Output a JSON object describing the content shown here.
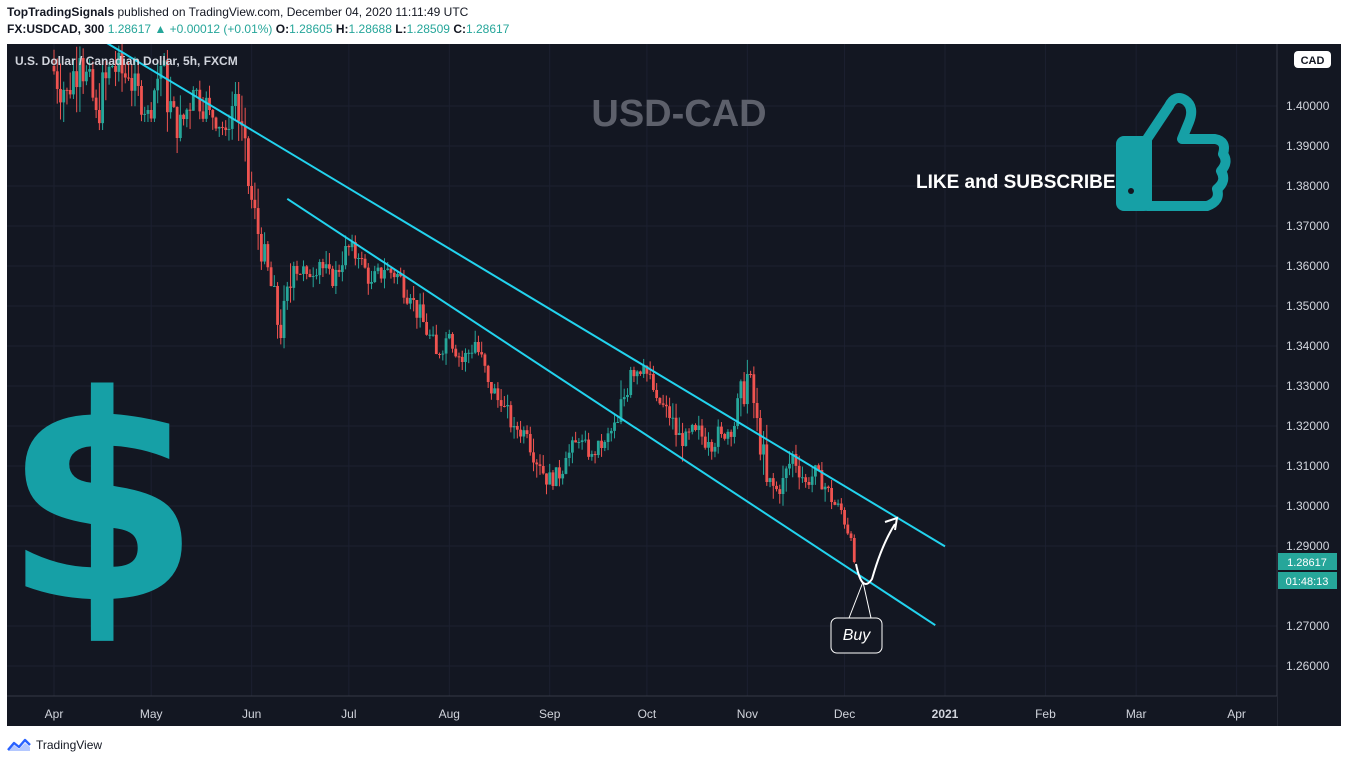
{
  "header": {
    "author": "TopTradingSignals",
    "published_text": "published on TradingView.com, December 04, 2020 11:11:49 UTC",
    "symbol": "FX:USDCAD, 300",
    "last": "1.28617",
    "change_arrow": "▲",
    "change": "+0.00012 (+0.01%)",
    "o_label": "O:",
    "o_value": "1.28605",
    "h_label": "H:",
    "h_value": "1.28688",
    "l_label": "L:",
    "l_value": "1.28509",
    "c_label": "C:",
    "c_value": "1.28617"
  },
  "footer": {
    "brand": "TradingView",
    "logo_icon": "tradingview-logo-icon"
  },
  "colors": {
    "background": "#131722",
    "up": "#26a69a",
    "down": "#ef5350",
    "channel": "#22d3ee",
    "overlay_text": "#5d606b",
    "thumb": "#16a0a6",
    "price_tag": "#26a69a"
  },
  "overlays": {
    "watermark": "USD-CAD",
    "cta": "LIKE and SUBSCRIBE",
    "thumb_icon": "thumbs-up-icon",
    "dollar_icon": "dollar-sign-icon",
    "buy_label": "Buy",
    "currency_badge": "CAD",
    "price_tag": "1.28617",
    "countdown": "01:48:13"
  },
  "chart_data": {
    "type": "candlestick",
    "title": "U.S. Dollar / Canadian Dollar, 5h, FXCM",
    "xlabel": "",
    "ylabel": "",
    "x_ticks": [
      "Apr",
      "May",
      "Jun",
      "Jul",
      "Aug",
      "Sep",
      "Oct",
      "Nov",
      "Dec",
      "2021",
      "Feb",
      "Mar",
      "Apr"
    ],
    "y_ticks": [
      "1.40000",
      "1.39000",
      "1.38000",
      "1.37000",
      "1.36000",
      "1.35000",
      "1.34000",
      "1.33000",
      "1.32000",
      "1.31000",
      "1.30000",
      "1.29000",
      "1.27000",
      "1.26000"
    ],
    "ylim": [
      1.2525,
      1.4155
    ],
    "series": [
      {
        "values": [
          [
            "2020-04-01",
            1.41,
            1.425,
            1.396,
            1.404
          ],
          [
            "2020-04-06",
            1.404,
            1.42,
            1.394,
            1.412
          ],
          [
            "2020-04-10",
            1.412,
            1.418,
            1.395,
            1.399
          ],
          [
            "2020-04-15",
            1.399,
            1.415,
            1.386,
            1.41
          ],
          [
            "2020-04-20",
            1.41,
            1.42,
            1.398,
            1.407
          ],
          [
            "2020-04-25",
            1.407,
            1.414,
            1.396,
            1.399
          ],
          [
            "2020-05-01",
            1.399,
            1.418,
            1.396,
            1.41
          ],
          [
            "2020-05-05",
            1.41,
            1.414,
            1.386,
            1.392
          ],
          [
            "2020-05-10",
            1.392,
            1.413,
            1.39,
            1.404
          ],
          [
            "2020-05-15",
            1.404,
            1.415,
            1.396,
            1.399
          ],
          [
            "2020-05-20",
            1.399,
            1.402,
            1.388,
            1.394
          ],
          [
            "2020-05-25",
            1.394,
            1.406,
            1.39,
            1.403
          ],
          [
            "2020-05-28",
            1.403,
            1.406,
            1.378,
            1.38
          ],
          [
            "2020-06-01",
            1.38,
            1.384,
            1.362,
            1.368
          ],
          [
            "2020-06-04",
            1.368,
            1.37,
            1.352,
            1.355
          ],
          [
            "2020-06-08",
            1.355,
            1.358,
            1.337,
            1.342
          ],
          [
            "2020-06-11",
            1.342,
            1.365,
            1.339,
            1.36
          ],
          [
            "2020-06-15",
            1.36,
            1.368,
            1.355,
            1.358
          ],
          [
            "2020-06-19",
            1.358,
            1.362,
            1.35,
            1.361
          ],
          [
            "2020-06-23",
            1.361,
            1.364,
            1.35,
            1.355
          ],
          [
            "2020-06-27",
            1.355,
            1.368,
            1.353,
            1.365
          ],
          [
            "2020-07-01",
            1.365,
            1.37,
            1.358,
            1.362
          ],
          [
            "2020-07-05",
            1.362,
            1.364,
            1.352,
            1.356
          ],
          [
            "2020-07-09",
            1.356,
            1.362,
            1.35,
            1.359
          ],
          [
            "2020-07-13",
            1.359,
            1.364,
            1.352,
            1.358
          ],
          [
            "2020-07-17",
            1.358,
            1.362,
            1.349,
            1.352
          ],
          [
            "2020-07-21",
            1.352,
            1.355,
            1.342,
            1.346
          ],
          [
            "2020-07-25",
            1.346,
            1.349,
            1.335,
            1.338
          ],
          [
            "2020-07-29",
            1.338,
            1.346,
            1.334,
            1.343
          ],
          [
            "2020-08-02",
            1.343,
            1.346,
            1.334,
            1.336
          ],
          [
            "2020-08-06",
            1.336,
            1.345,
            1.332,
            1.341
          ],
          [
            "2020-08-10",
            1.341,
            1.343,
            1.328,
            1.331
          ],
          [
            "2020-08-14",
            1.331,
            1.336,
            1.322,
            1.325
          ],
          [
            "2020-08-18",
            1.325,
            1.329,
            1.316,
            1.32
          ],
          [
            "2020-08-22",
            1.32,
            1.324,
            1.313,
            1.318
          ],
          [
            "2020-08-26",
            1.318,
            1.321,
            1.307,
            1.31
          ],
          [
            "2020-08-30",
            1.31,
            1.313,
            1.3,
            1.305
          ],
          [
            "2020-09-03",
            1.305,
            1.315,
            1.302,
            1.312
          ],
          [
            "2020-09-07",
            1.312,
            1.319,
            1.307,
            1.316
          ],
          [
            "2020-09-11",
            1.316,
            1.32,
            1.31,
            1.313
          ],
          [
            "2020-09-15",
            1.313,
            1.318,
            1.309,
            1.316
          ],
          [
            "2020-09-19",
            1.316,
            1.323,
            1.313,
            1.321
          ],
          [
            "2020-09-23",
            1.321,
            1.338,
            1.319,
            1.334
          ],
          [
            "2020-09-27",
            1.334,
            1.342,
            1.33,
            1.335
          ],
          [
            "2020-10-01",
            1.335,
            1.337,
            1.324,
            1.327
          ],
          [
            "2020-10-05",
            1.327,
            1.331,
            1.318,
            1.322
          ],
          [
            "2020-10-09",
            1.322,
            1.326,
            1.31,
            1.315
          ],
          [
            "2020-10-13",
            1.315,
            1.323,
            1.311,
            1.319
          ],
          [
            "2020-10-17",
            1.319,
            1.324,
            1.312,
            1.316
          ],
          [
            "2020-10-21",
            1.316,
            1.322,
            1.309,
            1.318
          ],
          [
            "2020-10-25",
            1.318,
            1.323,
            1.313,
            1.32
          ],
          [
            "2020-10-29",
            1.32,
            1.339,
            1.317,
            1.333
          ],
          [
            "2020-11-02",
            1.333,
            1.337,
            1.318,
            1.322
          ],
          [
            "2020-11-05",
            1.322,
            1.324,
            1.303,
            1.306
          ],
          [
            "2020-11-08",
            1.306,
            1.309,
            1.294,
            1.303
          ],
          [
            "2020-11-12",
            1.303,
            1.316,
            1.3,
            1.313
          ],
          [
            "2020-11-16",
            1.313,
            1.316,
            1.303,
            1.306
          ],
          [
            "2020-11-20",
            1.306,
            1.313,
            1.303,
            1.309
          ],
          [
            "2020-11-24",
            1.309,
            1.311,
            1.298,
            1.301
          ],
          [
            "2020-11-28",
            1.301,
            1.304,
            1.296,
            1.299
          ],
          [
            "2020-12-01",
            1.299,
            1.3,
            1.289,
            1.292
          ],
          [
            "2020-12-04",
            1.292,
            1.293,
            1.285,
            1.286
          ]
        ]
      }
    ],
    "annotations": [
      {
        "type": "trendline",
        "label": "upper-channel",
        "from": [
          "2020-04-17",
          1.4159
        ],
        "to": [
          "2021-01-01",
          1.2899
        ]
      },
      {
        "type": "trendline",
        "label": "lower-channel",
        "from": [
          "2020-06-12",
          1.3768
        ],
        "to": [
          "2020-12-29",
          1.2702
        ]
      },
      {
        "type": "text",
        "text": "Buy",
        "at": [
          "2020-12-05",
          1.2713
        ]
      }
    ]
  }
}
